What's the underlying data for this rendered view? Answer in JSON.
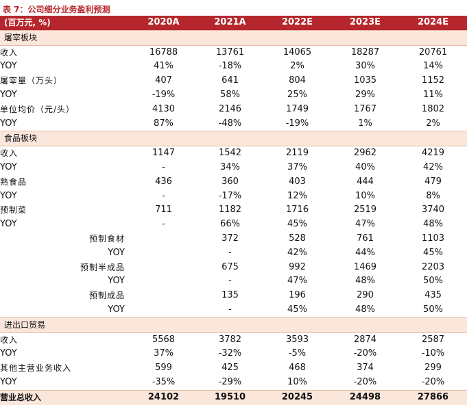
{
  "caption": "表 7：公司细分业务盈利预测",
  "header": [
    "(百万元, %)",
    "2020A",
    "2021A",
    "2022E",
    "2023E",
    "2024E"
  ],
  "rows": [
    {
      "type": "section",
      "label": "屠宰板块"
    },
    {
      "type": "data",
      "label": "收入",
      "cn": true,
      "values": [
        "16788",
        "13761",
        "14065",
        "18287",
        "20761"
      ]
    },
    {
      "type": "data",
      "label": "YOY",
      "values": [
        "41%",
        "-18%",
        "2%",
        "30%",
        "14%"
      ]
    },
    {
      "type": "data",
      "label": "屠宰量（万头）",
      "cn": true,
      "values": [
        "407",
        "641",
        "804",
        "1035",
        "1152"
      ]
    },
    {
      "type": "data",
      "label": "YOY",
      "values": [
        "-19%",
        "58%",
        "25%",
        "29%",
        "11%"
      ]
    },
    {
      "type": "data",
      "label": "单位均价（元/头）",
      "cn": true,
      "values": [
        "4130",
        "2146",
        "1749",
        "1767",
        "1802"
      ]
    },
    {
      "type": "data",
      "label": "YOY",
      "values": [
        "87%",
        "-48%",
        "-19%",
        "1%",
        "2%"
      ]
    },
    {
      "type": "section",
      "label": "食品板块"
    },
    {
      "type": "data",
      "label": "收入",
      "cn": true,
      "values": [
        "1147",
        "1542",
        "2119",
        "2962",
        "4219"
      ]
    },
    {
      "type": "data",
      "label": "YOY",
      "values": [
        "-",
        "34%",
        "37%",
        "40%",
        "42%"
      ]
    },
    {
      "type": "data",
      "label": "熟食品",
      "cn": true,
      "values": [
        "436",
        "360",
        "403",
        "444",
        "479"
      ]
    },
    {
      "type": "data",
      "label": "YOY",
      "values": [
        "-",
        "-17%",
        "12%",
        "10%",
        "8%"
      ]
    },
    {
      "type": "data",
      "label": "预制菜",
      "cn": true,
      "values": [
        "711",
        "1182",
        "1716",
        "2519",
        "3740"
      ]
    },
    {
      "type": "data",
      "label": "YOY",
      "values": [
        "-",
        "66%",
        "45%",
        "47%",
        "48%"
      ]
    },
    {
      "type": "data",
      "label": "预制食材",
      "cn": true,
      "indent": true,
      "values": [
        "",
        "372",
        "528",
        "761",
        "1103"
      ]
    },
    {
      "type": "data",
      "label": "YOY",
      "indent": true,
      "values": [
        "",
        "-",
        "42%",
        "44%",
        "45%"
      ]
    },
    {
      "type": "data",
      "label": "预制半成品",
      "cn": true,
      "indent": true,
      "values": [
        "",
        "675",
        "992",
        "1469",
        "2203"
      ]
    },
    {
      "type": "data",
      "label": "YOY",
      "indent": true,
      "values": [
        "",
        "-",
        "47%",
        "48%",
        "50%"
      ]
    },
    {
      "type": "data",
      "label": "预制成品",
      "cn": true,
      "indent": true,
      "values": [
        "",
        "135",
        "196",
        "290",
        "435"
      ]
    },
    {
      "type": "data",
      "label": "YOY",
      "indent": true,
      "values": [
        "",
        "-",
        "45%",
        "48%",
        "50%"
      ]
    },
    {
      "type": "section",
      "label": "进出口贸易"
    },
    {
      "type": "data",
      "label": "收入",
      "cn": true,
      "values": [
        "5568",
        "3782",
        "3593",
        "2874",
        "2587"
      ]
    },
    {
      "type": "data",
      "label": "YOY",
      "values": [
        "37%",
        "-32%",
        "-5%",
        "-20%",
        "-10%"
      ]
    },
    {
      "type": "data",
      "label": "其他主营业务收入",
      "cn": true,
      "values": [
        "599",
        "425",
        "468",
        "374",
        "299"
      ]
    },
    {
      "type": "data",
      "label": "YOY",
      "values": [
        "-35%",
        "-29%",
        "10%",
        "-20%",
        "-20%"
      ]
    },
    {
      "type": "total",
      "label": "营业总收入",
      "values": [
        "24102",
        "19510",
        "20245",
        "24498",
        "27866"
      ]
    }
  ]
}
